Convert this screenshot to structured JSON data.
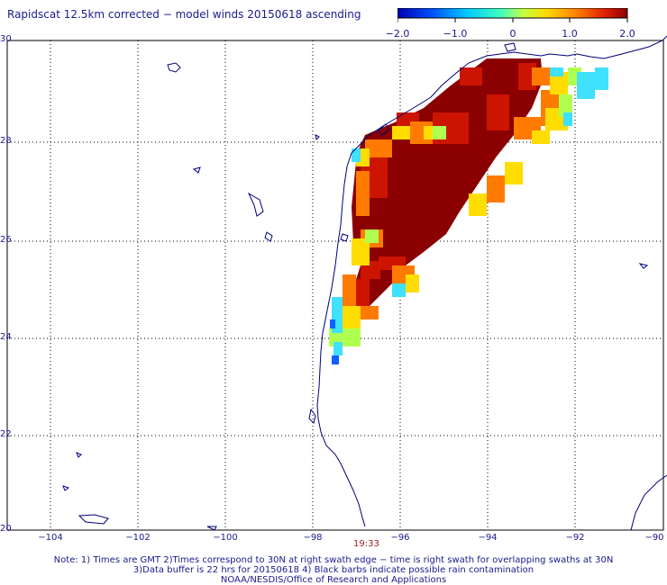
{
  "title": "Rapidscat 12.5km corrected − model winds 20150618 ascending",
  "colorbar": {
    "ticks": [
      "−2.0",
      "−1.0",
      "0",
      "1.0",
      "2.0"
    ],
    "colors": [
      "#0000b0",
      "#0050ff",
      "#00c8ff",
      "#40ffc0",
      "#c8ff40",
      "#ffd800",
      "#ff8000",
      "#e02000",
      "#8b0000"
    ]
  },
  "axes": {
    "lat_labels": [
      "30",
      "28",
      "26",
      "24",
      "22",
      "20"
    ],
    "lon_labels": [
      "−104",
      "−102",
      "−100",
      "−98",
      "−96",
      "−94",
      "−92",
      "−90"
    ]
  },
  "time_label": "19:33",
  "notes": [
    "Note: 1) Times are GMT 2)Times correspond to 30N at right swath edge − time is right swath for overlapping swaths at 30N",
    "3)Data buffer is 22 hrs for 20150618 4) Black barbs indicate possible rain contamination",
    "NOAA/NESDIS/Office of Research and Applications"
  ]
}
